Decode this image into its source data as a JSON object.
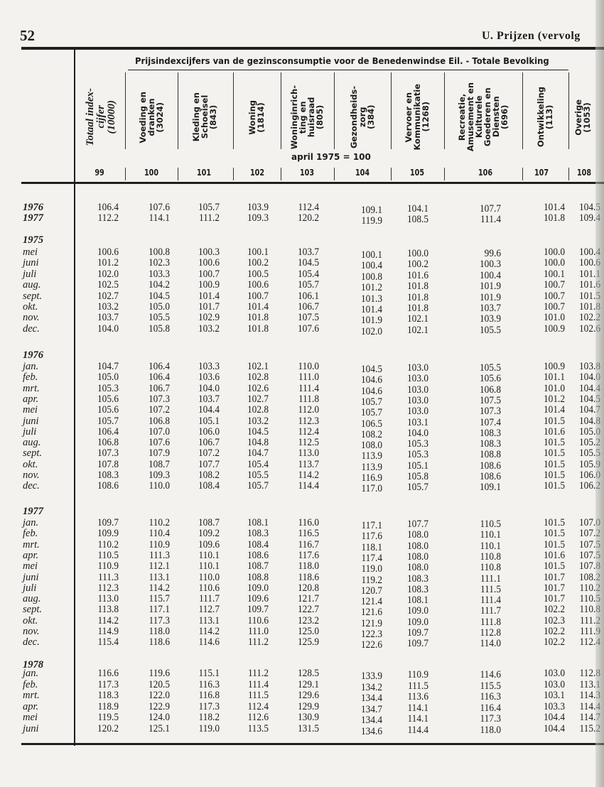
{
  "page_header": {
    "page_number": "52",
    "section_title": "U.  Prijzen (vervolg"
  },
  "table": {
    "title": "Prijsindexcijfers van de gezinsconsumptie voor de Benedenwindse Eil. - Totale Bevolking",
    "base_note": "april 1975 = 100",
    "columns": [
      {
        "header": "Totaal index-\ncijfer\n(10000)",
        "number": "99"
      },
      {
        "header": "Voeding en\ndranken\n(3024)",
        "number": "100"
      },
      {
        "header": "Kleding en\nSchoeisel\n(843)",
        "number": "101"
      },
      {
        "header": "Woning\n(1814)",
        "number": "102"
      },
      {
        "header": "Woninginrich-\nting en\nhuisraad\n(805)",
        "number": "103"
      },
      {
        "header": "Gezondheids-\nzorg\n(384)",
        "number": "104"
      },
      {
        "header": "Vervoer en\nKommunikatie\n(1268)",
        "number": "105"
      },
      {
        "header": "Recreatie,\nAmusement en\nKulturele\nGoederen en\nDiensten\n(696)",
        "number": "106"
      },
      {
        "header": "Ontwikkeling\n(113)",
        "number": "107"
      },
      {
        "header": "Overige\n(1053)",
        "number": "108"
      }
    ],
    "sections": [
      {
        "label": "",
        "rows": [
          {
            "label": "1976",
            "values": [
              "106.4",
              "107.6",
              "105.7",
              "103.9",
              "112.4",
              "109.1",
              "104.1",
              "107.7",
              "101.4",
              "104.5"
            ]
          },
          {
            "label": "1977",
            "values": [
              "112.2",
              "114.1",
              "111.2",
              "109.3",
              "120.2",
              "119.9",
              "108.5",
              "111.4",
              "101.8",
              "109.4"
            ]
          }
        ]
      },
      {
        "label": "1975",
        "rows": [
          {
            "label": "mei",
            "values": [
              "100.6",
              "100.8",
              "100.3",
              "100.1",
              "103.7",
              "100.1",
              "100.0",
              "99.6",
              "100.0",
              "100.4"
            ]
          },
          {
            "label": "juni",
            "values": [
              "101.2",
              "102.3",
              "100.6",
              "100.2",
              "104.5",
              "100.4",
              "100.2",
              "100.3",
              "100.0",
              "100.6"
            ]
          },
          {
            "label": "juli",
            "values": [
              "102.0",
              "103.3",
              "100.7",
              "100.5",
              "105.4",
              "100.8",
              "101.6",
              "100.4",
              "100.1",
              "101.1"
            ]
          },
          {
            "label": "aug.",
            "values": [
              "102.5",
              "104.2",
              "100.9",
              "100.6",
              "105.7",
              "101.2",
              "101.8",
              "101.9",
              "100.7",
              "101.6"
            ]
          },
          {
            "label": "sept.",
            "values": [
              "102.7",
              "104.5",
              "101.4",
              "100.7",
              "106.1",
              "101.3",
              "101.8",
              "101.9",
              "100.7",
              "101.5"
            ]
          },
          {
            "label": "okt.",
            "values": [
              "103.2",
              "105.0",
              "101.7",
              "101.4",
              "106.7",
              "101.4",
              "101.8",
              "103.7",
              "100.7",
              "101.8"
            ]
          },
          {
            "label": "nov.",
            "values": [
              "103.7",
              "105.5",
              "102.9",
              "101.8",
              "107.5",
              "101.9",
              "102.1",
              "103.9",
              "101.0",
              "102.2"
            ]
          },
          {
            "label": "dec.",
            "values": [
              "104.0",
              "105.8",
              "103.2",
              "101.8",
              "107.6",
              "102.0",
              "102.1",
              "105.5",
              "100.9",
              "102.6"
            ]
          }
        ]
      },
      {
        "label": "1976",
        "rows": [
          {
            "label": "jan.",
            "values": [
              "104.7",
              "106.4",
              "103.3",
              "102.1",
              "110.0",
              "104.5",
              "103.0",
              "105.5",
              "100.9",
              "103.8"
            ]
          },
          {
            "label": "feb.",
            "values": [
              "105.0",
              "106.4",
              "103.6",
              "102.8",
              "111.0",
              "104.6",
              "103.0",
              "105.6",
              "101.1",
              "104.0"
            ]
          },
          {
            "label": "mrt.",
            "values": [
              "105.3",
              "106.7",
              "104.0",
              "102.6",
              "111.4",
              "104.6",
              "103.0",
              "106.8",
              "101.0",
              "104.4"
            ]
          },
          {
            "label": "apr.",
            "values": [
              "105.6",
              "107.3",
              "103.7",
              "102.7",
              "111.8",
              "105.7",
              "103.0",
              "107.5",
              "101.2",
              "104.5"
            ]
          },
          {
            "label": "mei",
            "values": [
              "105.6",
              "107.2",
              "104.4",
              "102.8",
              "112.0",
              "105.7",
              "103.0",
              "107.3",
              "101.4",
              "104.7"
            ]
          },
          {
            "label": "juni",
            "values": [
              "105.7",
              "106.8",
              "105.1",
              "103.2",
              "112.3",
              "106.5",
              "103.1",
              "107.4",
              "101.5",
              "104.8"
            ]
          },
          {
            "label": "juli",
            "values": [
              "106.4",
              "107.0",
              "106.0",
              "104.5",
              "112.4",
              "108.2",
              "104.0",
              "108.3",
              "101.6",
              "105.0"
            ]
          },
          {
            "label": "aug.",
            "values": [
              "106.8",
              "107.6",
              "106.7",
              "104.8",
              "112.5",
              "108.0",
              "105.3",
              "108.3",
              "101.5",
              "105.2"
            ]
          },
          {
            "label": "sept.",
            "values": [
              "107.3",
              "107.9",
              "107.2",
              "104.7",
              "113.0",
              "113.9",
              "105.3",
              "108.8",
              "101.5",
              "105.5"
            ]
          },
          {
            "label": "okt.",
            "values": [
              "107.8",
              "108.7",
              "107.7",
              "105.4",
              "113.7",
              "113.9",
              "105.1",
              "108.6",
              "101.5",
              "105.9"
            ]
          },
          {
            "label": "nov.",
            "values": [
              "108.3",
              "109.3",
              "108.2",
              "105.5",
              "114.2",
              "116.9",
              "105.8",
              "108.6",
              "101.5",
              "106.0"
            ]
          },
          {
            "label": "dec.",
            "values": [
              "108.6",
              "110.0",
              "108.4",
              "105.7",
              "114.4",
              "117.0",
              "105.7",
              "109.1",
              "101.5",
              "106.2"
            ]
          }
        ]
      },
      {
        "label": "1977",
        "rows": [
          {
            "label": "jan.",
            "values": [
              "109.7",
              "110.2",
              "108.7",
              "108.1",
              "116.0",
              "117.1",
              "107.7",
              "110.5",
              "101.5",
              "107.0"
            ]
          },
          {
            "label": "feb.",
            "values": [
              "109.9",
              "110.4",
              "109.2",
              "108.3",
              "116.5",
              "117.6",
              "108.0",
              "110.1",
              "101.5",
              "107.2"
            ]
          },
          {
            "label": "mrt.",
            "values": [
              "110.2",
              "110.9",
              "109.6",
              "108.4",
              "116.7",
              "118.1",
              "108.0",
              "110.1",
              "101.5",
              "107.5"
            ]
          },
          {
            "label": "apr.",
            "values": [
              "110.5",
              "111.3",
              "110.1",
              "108.6",
              "117.6",
              "117.4",
              "108.0",
              "110.8",
              "101.6",
              "107.5"
            ]
          },
          {
            "label": "mei",
            "values": [
              "110.9",
              "112.1",
              "110.1",
              "108.7",
              "118.0",
              "119.0",
              "108.0",
              "110.8",
              "101.5",
              "107.8"
            ]
          },
          {
            "label": "juni",
            "values": [
              "111.3",
              "113.1",
              "110.0",
              "108.8",
              "118.6",
              "119.2",
              "108.3",
              "111.1",
              "101.7",
              "108.2"
            ]
          },
          {
            "label": "juli",
            "values": [
              "112.3",
              "114.2",
              "110.6",
              "109.0",
              "120.8",
              "120.7",
              "108.3",
              "111.5",
              "101.7",
              "110.2"
            ]
          },
          {
            "label": "aug.",
            "values": [
              "113.0",
              "115.7",
              "111.7",
              "109.6",
              "121.7",
              "121.4",
              "108.1",
              "111.4",
              "101.7",
              "110.5"
            ]
          },
          {
            "label": "sept.",
            "values": [
              "113.8",
              "117.1",
              "112.7",
              "109.7",
              "122.7",
              "121.6",
              "109.0",
              "111.7",
              "102.2",
              "110.8"
            ]
          },
          {
            "label": "okt.",
            "values": [
              "114.2",
              "117.3",
              "113.1",
              "110.6",
              "123.2",
              "121.9",
              "109.0",
              "111.8",
              "102.3",
              "111.2"
            ]
          },
          {
            "label": "nov.",
            "values": [
              "114.9",
              "118.0",
              "114.2",
              "111.0",
              "125.0",
              "122.3",
              "109.7",
              "112.8",
              "102.2",
              "111.9"
            ]
          },
          {
            "label": "dec.",
            "values": [
              "115.4",
              "118.6",
              "114.6",
              "111.2",
              "125.9",
              "122.6",
              "109.7",
              "114.0",
              "102.2",
              "112.4"
            ]
          }
        ]
      },
      {
        "label": "1978",
        "rows": [
          {
            "label": "jan.",
            "values": [
              "116.6",
              "119.6",
              "115.1",
              "111.2",
              "128.5",
              "133.9",
              "110.9",
              "114.6",
              "103.0",
              "112.8"
            ]
          },
          {
            "label": "feb.",
            "values": [
              "117.3",
              "120.5",
              "116.3",
              "111.4",
              "129.1",
              "134.2",
              "111.5",
              "115.5",
              "103.0",
              "113.1"
            ]
          },
          {
            "label": "mrt.",
            "values": [
              "118.3",
              "122.0",
              "116.8",
              "111.5",
              "129.6",
              "134.4",
              "113.6",
              "116.3",
              "103.1",
              "114.3"
            ]
          },
          {
            "label": "apr.",
            "values": [
              "118.9",
              "122.9",
              "117.3",
              "112.4",
              "129.9",
              "134.7",
              "114.1",
              "116.4",
              "103.3",
              "114.4"
            ]
          },
          {
            "label": "mei",
            "values": [
              "119.5",
              "124.0",
              "118.2",
              "112.6",
              "130.9",
              "134.4",
              "114.1",
              "117.3",
              "104.4",
              "114.7"
            ]
          },
          {
            "label": "juni",
            "values": [
              "120.2",
              "125.1",
              "119.0",
              "113.5",
              "131.5",
              "134.6",
              "114.4",
              "118.0",
              "104.4",
              "115.2"
            ]
          }
        ]
      }
    ]
  }
}
